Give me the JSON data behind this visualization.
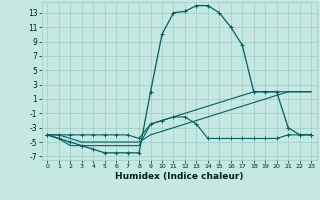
{
  "xlabel": "Humidex (Indice chaleur)",
  "background_color": "#c5e8e2",
  "grid_color": "#9dcdc5",
  "line_color": "#006060",
  "xlim": [
    -0.5,
    23.5
  ],
  "ylim": [
    -7.5,
    14.5
  ],
  "xticks": [
    0,
    1,
    2,
    3,
    4,
    5,
    6,
    7,
    8,
    9,
    10,
    11,
    12,
    13,
    14,
    15,
    16,
    17,
    18,
    19,
    20,
    21,
    22,
    23
  ],
  "yticks": [
    -7,
    -5,
    -3,
    -1,
    1,
    3,
    5,
    7,
    9,
    11,
    13
  ],
  "curve1_x": [
    0,
    1,
    2,
    3,
    4,
    5,
    6,
    7,
    8,
    9,
    10,
    11,
    12,
    13,
    14,
    15,
    16,
    17,
    18,
    19,
    20,
    21,
    22,
    23
  ],
  "curve1_y": [
    -4,
    -4.5,
    -5,
    -5.5,
    -6,
    -6.5,
    -6.5,
    -6.5,
    -6.5,
    2,
    10,
    13,
    13.2,
    14,
    14,
    13,
    11,
    8.5,
    2,
    2,
    2,
    -3,
    -4,
    -4
  ],
  "curve2_x": [
    0,
    1,
    2,
    3,
    4,
    5,
    6,
    7,
    8,
    9,
    10,
    11,
    12,
    13,
    14,
    15,
    16,
    17,
    18,
    19,
    20,
    21,
    22,
    23
  ],
  "curve2_y": [
    -4,
    -4,
    -4,
    -4,
    -4,
    -4,
    -4,
    -4,
    -4.5,
    -2.5,
    -2,
    -1.5,
    -1.5,
    -2.5,
    -4.5,
    -4.5,
    -4.5,
    -4.5,
    -4.5,
    -4.5,
    -4.5,
    -4,
    -4,
    -4
  ],
  "curve3_x": [
    0,
    1,
    2,
    3,
    4,
    5,
    6,
    7,
    8,
    9,
    10,
    11,
    12,
    13,
    14,
    15,
    16,
    17,
    18,
    19,
    20,
    21,
    22,
    23
  ],
  "curve3_y": [
    -4,
    -4.5,
    -5.5,
    -5.5,
    -5.5,
    -5.5,
    -5.5,
    -5.5,
    -5.5,
    -2.5,
    -2,
    -1.5,
    -1,
    -0.5,
    0,
    0.5,
    1,
    1.5,
    2,
    2,
    2,
    2,
    2,
    2
  ],
  "curve4_x": [
    0,
    1,
    2,
    3,
    4,
    5,
    6,
    7,
    8,
    9,
    10,
    11,
    12,
    13,
    14,
    15,
    16,
    17,
    18,
    19,
    20,
    21,
    22,
    23
  ],
  "curve4_y": [
    -4,
    -4,
    -4.5,
    -5,
    -5,
    -5,
    -5,
    -5,
    -5,
    -4,
    -3.5,
    -3,
    -2.5,
    -2,
    -1.5,
    -1,
    -0.5,
    0,
    0.5,
    1,
    1.5,
    2,
    2,
    2
  ]
}
